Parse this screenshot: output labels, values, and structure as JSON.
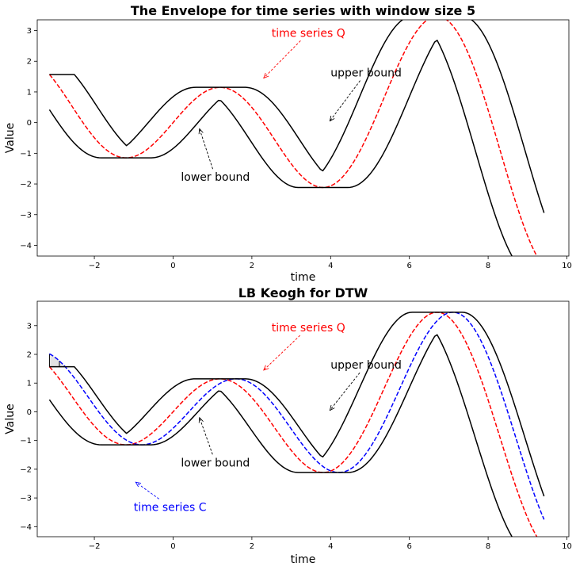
{
  "chart_data": [
    {
      "type": "line",
      "title": "The Envelope for time series with window size 5",
      "xlabel": "time",
      "ylabel": "Value",
      "xlim": [
        -3.45,
        10.05
      ],
      "ylim": [
        -4.35,
        3.35
      ],
      "xticks": [
        -2,
        0,
        2,
        4,
        6,
        8,
        10
      ],
      "yticks": [
        -4,
        -3,
        -2,
        -1,
        0,
        1,
        2,
        3
      ],
      "x_range": [
        -3.14,
        9.42
      ],
      "series": [
        {
          "name": "time series Q",
          "role": "Q",
          "color": "#ff0000",
          "dashed": true
        },
        {
          "name": "upper bound",
          "role": "U",
          "color": "#000000",
          "dashed": false
        },
        {
          "name": "lower bound",
          "role": "L",
          "color": "#000000",
          "dashed": false
        }
      ],
      "annotations": [
        {
          "text": "time series Q",
          "color": "#ff0000",
          "xy": [
            2.3,
            1.45
          ],
          "xytext": [
            2.5,
            2.8
          ],
          "ha": "left"
        },
        {
          "text": "upper bound",
          "color": "#000000",
          "xy": [
            3.98,
            0.05
          ],
          "xytext": [
            4.0,
            1.5
          ],
          "ha": "left"
        },
        {
          "text": "lower bound",
          "color": "#000000",
          "xy": [
            0.67,
            -0.2
          ],
          "xytext": [
            0.2,
            -1.9
          ],
          "ha": "left"
        }
      ]
    },
    {
      "type": "line",
      "title": "LB Keogh for DTW",
      "xlabel": "time",
      "ylabel": "Value",
      "xlim": [
        -3.45,
        10.05
      ],
      "ylim": [
        -4.35,
        3.85
      ],
      "xticks": [
        -2,
        0,
        2,
        4,
        6,
        8,
        10
      ],
      "yticks": [
        -4,
        -3,
        -2,
        -1,
        0,
        1,
        2,
        3
      ],
      "x_range": [
        -3.14,
        9.42
      ],
      "series": [
        {
          "name": "time series Q",
          "role": "Q",
          "color": "#ff0000",
          "dashed": true
        },
        {
          "name": "time series C",
          "role": "C",
          "color": "#0000ff",
          "dashed": true
        },
        {
          "name": "upper bound",
          "role": "U",
          "color": "#000000",
          "dashed": false
        },
        {
          "name": "lower bound",
          "role": "L",
          "color": "#000000",
          "dashed": false
        }
      ],
      "annotations": [
        {
          "text": "time series Q",
          "color": "#ff0000",
          "xy": [
            2.3,
            1.45
          ],
          "xytext": [
            2.5,
            2.8
          ],
          "ha": "left"
        },
        {
          "text": "upper bound",
          "color": "#000000",
          "xy": [
            3.98,
            0.05
          ],
          "xytext": [
            4.0,
            1.5
          ],
          "ha": "left"
        },
        {
          "text": "lower bound",
          "color": "#000000",
          "xy": [
            0.67,
            -0.2
          ],
          "xytext": [
            0.2,
            -1.9
          ],
          "ha": "left"
        },
        {
          "text": "time series C",
          "color": "#0000ff",
          "xy": [
            -0.95,
            -2.45
          ],
          "xytext": [
            -1.0,
            -3.45
          ],
          "ha": "left"
        }
      ]
    }
  ]
}
